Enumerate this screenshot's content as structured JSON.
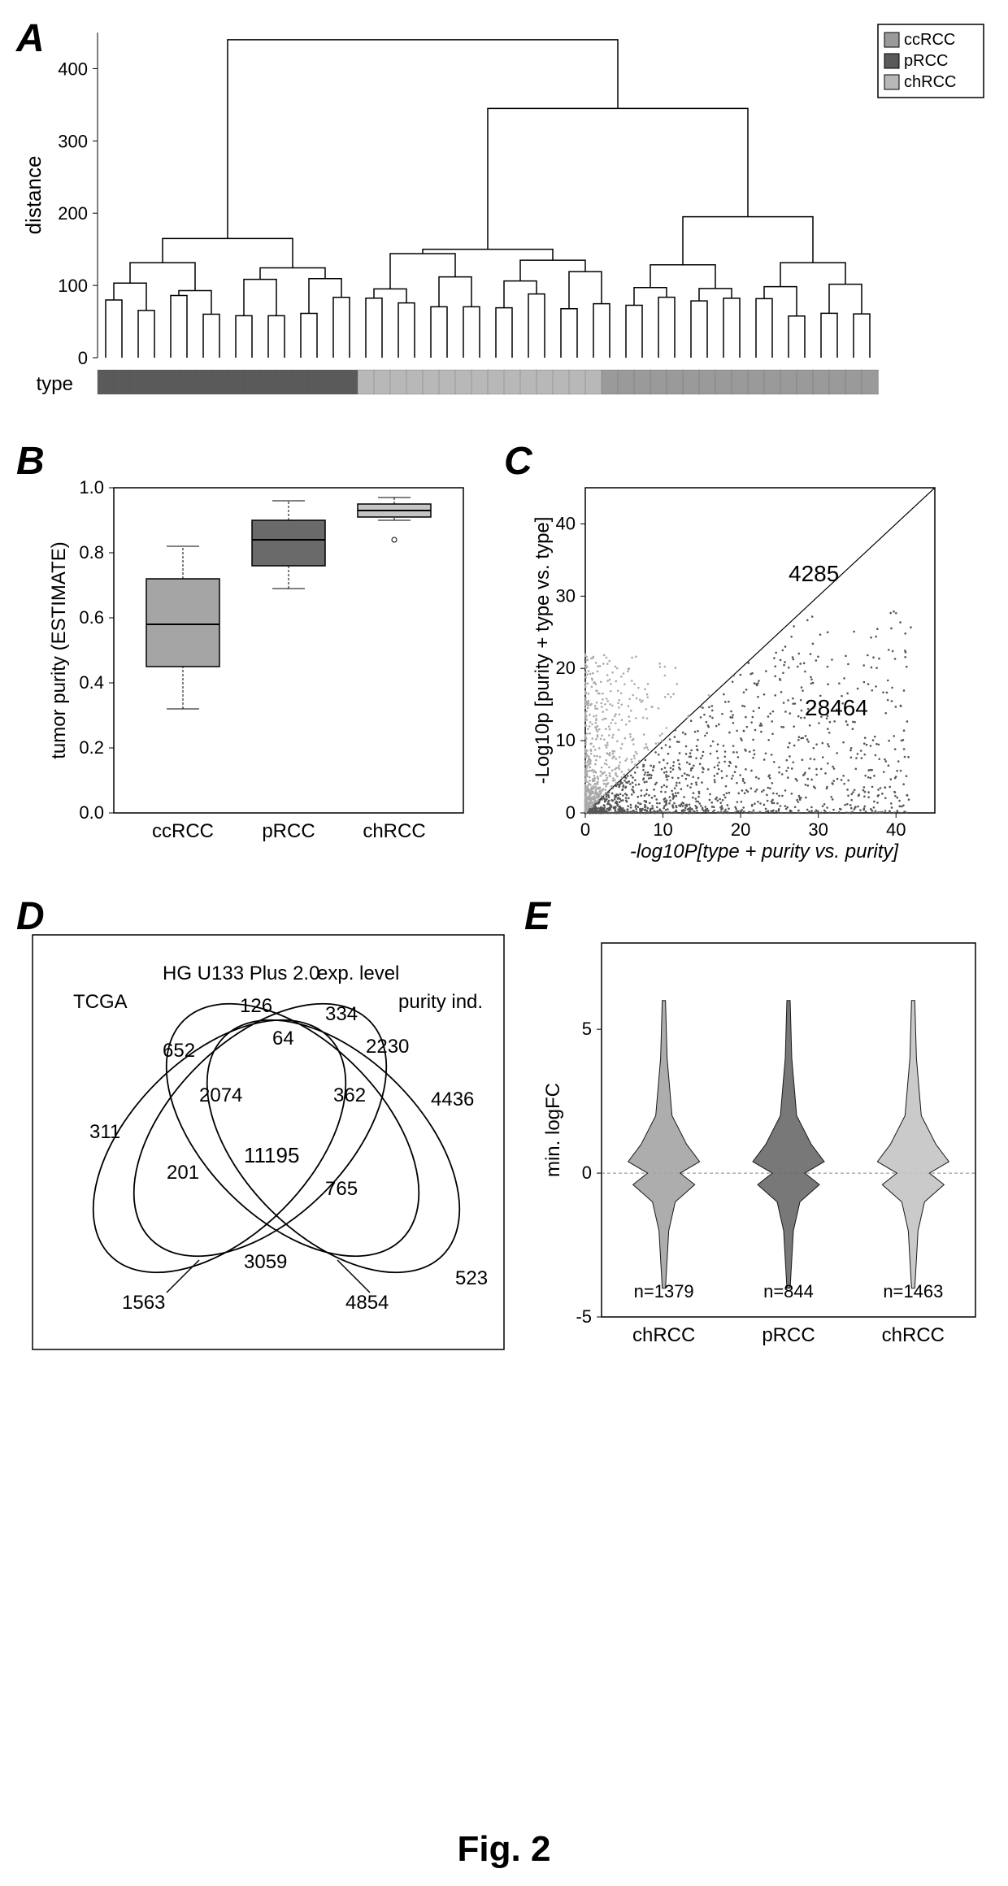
{
  "figure_caption": "Fig. 2",
  "colors": {
    "ccRCC": "#9a9a9a",
    "pRCC": "#5a5a5a",
    "chRCC": "#b8b8b8",
    "border": "#000000",
    "background": "#ffffff",
    "grid": "#cccccc"
  },
  "panelA": {
    "label": "A",
    "ylabel": "distance",
    "ylim": [
      0,
      450
    ],
    "yticks": [
      0,
      100,
      200,
      300,
      400
    ],
    "type_label": "type",
    "legend": {
      "items": [
        {
          "label": "ccRCC",
          "color": "#9a9a9a"
        },
        {
          "label": "pRCC",
          "color": "#5a5a5a"
        },
        {
          "label": "chRCC",
          "color": "#b8b8b8"
        }
      ]
    },
    "type_bar_colors": [
      "#5a5a5a",
      "#5a5a5a",
      "#5a5a5a",
      "#5a5a5a",
      "#5a5a5a",
      "#5a5a5a",
      "#5a5a5a",
      "#5a5a5a",
      "#5a5a5a",
      "#5a5a5a",
      "#5a5a5a",
      "#5a5a5a",
      "#5a5a5a",
      "#5a5a5a",
      "#5a5a5a",
      "#5a5a5a",
      "#b8b8b8",
      "#b8b8b8",
      "#b8b8b8",
      "#b8b8b8",
      "#b8b8b8",
      "#b8b8b8",
      "#b8b8b8",
      "#b8b8b8",
      "#b8b8b8",
      "#b8b8b8",
      "#b8b8b8",
      "#b8b8b8",
      "#b8b8b8",
      "#b8b8b8",
      "#b8b8b8",
      "#9a9a9a",
      "#9a9a9a",
      "#9a9a9a",
      "#9a9a9a",
      "#9a9a9a",
      "#9a9a9a",
      "#9a9a9a",
      "#9a9a9a",
      "#9a9a9a",
      "#9a9a9a",
      "#9a9a9a",
      "#9a9a9a",
      "#9a9a9a",
      "#9a9a9a",
      "#9a9a9a",
      "#9a9a9a",
      "#9a9a9a"
    ]
  },
  "panelB": {
    "label": "B",
    "ylabel": "tumor purity (ESTIMATE)",
    "ylim": [
      0.0,
      1.0
    ],
    "yticks": [
      "0.0",
      "0.2",
      "0.4",
      "0.6",
      "0.8",
      "1.0"
    ],
    "categories": [
      "ccRCC",
      "pRCC",
      "chRCC"
    ],
    "boxes": [
      {
        "cat": "ccRCC",
        "q1": 0.45,
        "med": 0.58,
        "q3": 0.72,
        "whisker_low": 0.32,
        "whisker_high": 0.82,
        "color": "#a5a5a5"
      },
      {
        "cat": "pRCC",
        "q1": 0.76,
        "med": 0.84,
        "q3": 0.9,
        "whisker_low": 0.69,
        "whisker_high": 0.96,
        "color": "#6a6a6a"
      },
      {
        "cat": "chRCC",
        "q1": 0.91,
        "med": 0.93,
        "q3": 0.95,
        "whisker_low": 0.9,
        "whisker_high": 0.97,
        "outliers": [
          0.84
        ],
        "color": "#c5c5c5"
      }
    ]
  },
  "panelC": {
    "label": "C",
    "xlabel": "-log10P[type + purity vs. purity]",
    "ylabel": "-Log10p [purity + type vs. type]",
    "xlim": [
      0,
      45
    ],
    "ylim": [
      0,
      45
    ],
    "xticks": [
      0,
      10,
      20,
      30,
      40
    ],
    "yticks": [
      0,
      10,
      20,
      30,
      40
    ],
    "annot_upper": "4285",
    "annot_lower": "28464",
    "scatter_color_above": "#aaaaaa",
    "scatter_color_below": "#555555"
  },
  "panelD": {
    "label": "D",
    "set_labels": [
      "TCGA",
      "HG U133 Plus 2.0",
      "exp. level",
      "purity ind."
    ],
    "region_values": {
      "only_TCGA": "311",
      "only_HG": "126",
      "only_exp": "334",
      "only_purity": "523",
      "TCGA_HG": "652",
      "HG_exp": "64",
      "exp_purity": "2230",
      "TCGA_purity": "1563",
      "TCGA_exp": "201",
      "HG_purity": "4854",
      "TCGA_HG_exp": "2074",
      "HG_exp_purity": "362",
      "TCGA_exp_purity": "3059",
      "TCGA_HG_purity": "765",
      "all_four": "11195",
      "extra1": "4436"
    }
  },
  "panelE": {
    "label": "E",
    "ylabel": "min. logFC",
    "ylim": [
      -5,
      8
    ],
    "yticks": [
      -5,
      0,
      5
    ],
    "categories": [
      "chRCC",
      "pRCC",
      "chRCC"
    ],
    "n_labels": [
      "n=1379",
      "n=844",
      "n=1463"
    ],
    "violin_colors": [
      "#a5a5a5",
      "#6a6a6a",
      "#c5c5c5"
    ]
  }
}
